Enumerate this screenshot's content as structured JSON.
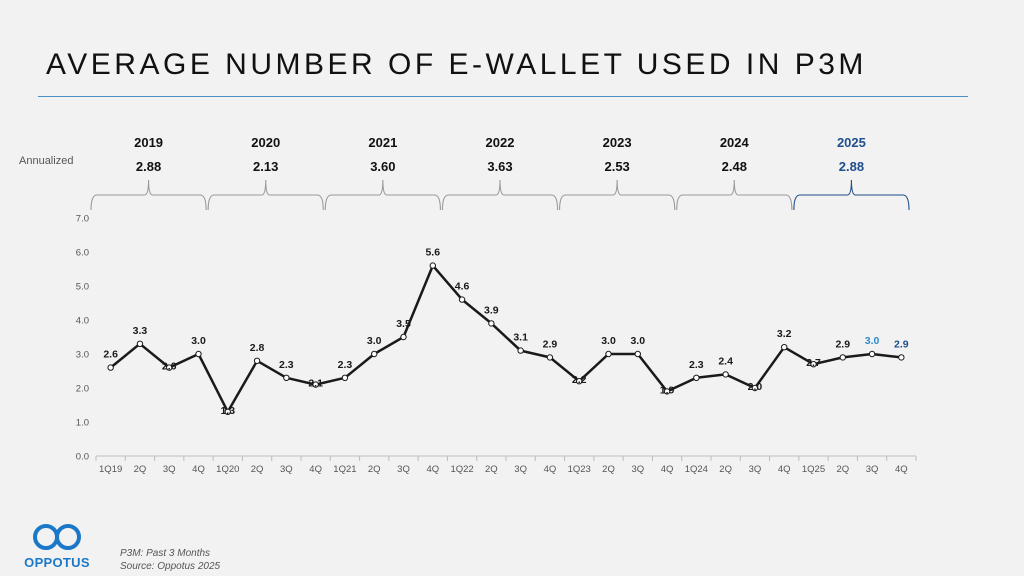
{
  "title": "AVERAGE NUMBER OF E-WALLET USED IN P3M",
  "annualized_label": "Annualized",
  "colors": {
    "line": "#1a1a1a",
    "highlight_year": "#1f4e8c",
    "highlight_point": "#2e8bc9",
    "bracket": "#9a9a9a",
    "rule": "#4a90c2",
    "logo": "#1b78c9"
  },
  "footnotes": [
    "P3M: Past 3 Months",
    "Source: Oppotus 2025"
  ],
  "logo": {
    "text": "OPPOTUS",
    "icon": "infinity-rings-logo-icon"
  },
  "chart_data": {
    "type": "line",
    "title": "AVERAGE NUMBER OF E-WALLET USED IN P3M",
    "xlabel": "",
    "ylabel": "",
    "ylim": [
      0,
      7
    ],
    "yticks": [
      "0.0",
      "1.0",
      "2.0",
      "3.0",
      "4.0",
      "5.0",
      "6.0",
      "7.0"
    ],
    "grid": false,
    "categories": [
      "1Q19",
      "2Q",
      "3Q",
      "4Q",
      "1Q20",
      "2Q",
      "3Q",
      "4Q",
      "1Q21",
      "2Q",
      "3Q",
      "4Q",
      "1Q22",
      "2Q",
      "3Q",
      "4Q",
      "1Q23",
      "2Q",
      "3Q",
      "4Q",
      "1Q24",
      "2Q",
      "3Q",
      "4Q",
      "1Q25",
      "2Q",
      "3Q",
      "4Q"
    ],
    "values": [
      2.6,
      3.3,
      2.6,
      3.0,
      1.3,
      2.8,
      2.3,
      2.1,
      2.3,
      3.0,
      3.5,
      5.6,
      4.6,
      3.9,
      3.1,
      2.9,
      2.2,
      3.0,
      3.0,
      1.9,
      2.3,
      2.4,
      2.0,
      3.2,
      2.7,
      2.9,
      3.0,
      2.9
    ],
    "labels": [
      "2.6",
      "3.3",
      "2.6",
      "3.0",
      "1.3",
      "2.8",
      "2.3",
      "2.1",
      "2.3",
      "3.0",
      "3.5",
      "5.6",
      "4.6",
      "3.9",
      "3.1",
      "2.9",
      "2.2",
      "3.0",
      "3.0",
      "1.9",
      "2.3",
      "2.4",
      "2.0",
      "3.2",
      "2.7",
      "2.9",
      "3.0",
      "2.9"
    ],
    "highlighted_indices": [
      26,
      27
    ],
    "annual": [
      {
        "year": "2019",
        "value": "2.88"
      },
      {
        "year": "2020",
        "value": "2.13"
      },
      {
        "year": "2021",
        "value": "3.60"
      },
      {
        "year": "2022",
        "value": "3.63"
      },
      {
        "year": "2023",
        "value": "2.53"
      },
      {
        "year": "2024",
        "value": "2.48"
      },
      {
        "year": "2025",
        "value": "2.88",
        "highlight": true
      }
    ]
  }
}
